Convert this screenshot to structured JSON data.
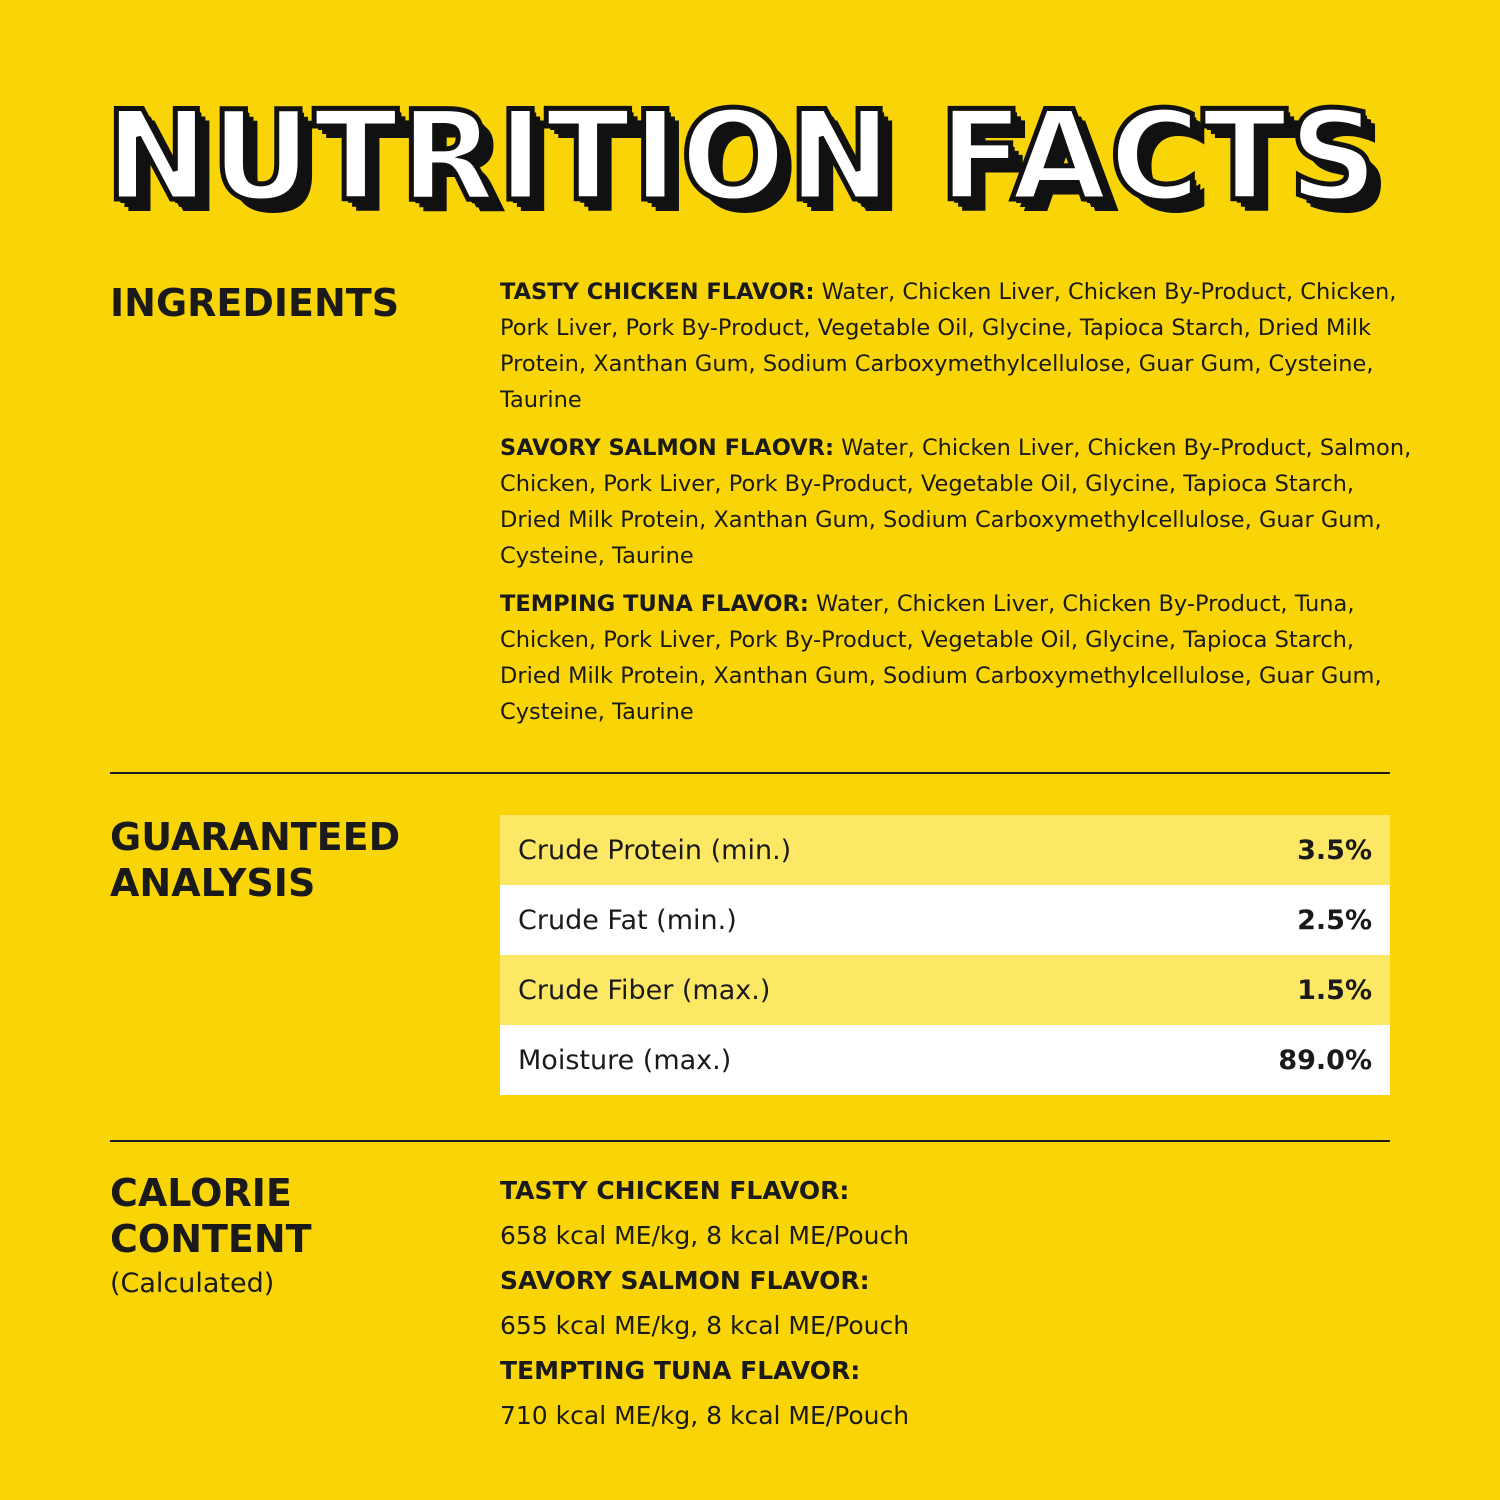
{
  "title": "NUTRITION FACTS",
  "ingredients": {
    "heading": "INGREDIENTS",
    "items": [
      {
        "label": "TASTY CHICKEN FLAVOR:",
        "text": "Water, Chicken Liver, Chicken By-Product, Chicken, Pork Liver, Pork By-Product, Vegetable Oil, Glycine, Tapioca Starch, Dried Milk Protein, Xanthan Gum, Sodium Carboxymethylcellulose, Guar Gum, Cysteine, Taurine"
      },
      {
        "label": "SAVORY SALMON FLAOVR:",
        "text": "Water, Chicken Liver, Chicken By-Product, Salmon, Chicken, Pork Liver, Pork By-Product, Vegetable Oil, Glycine, Tapioca Starch, Dried Milk Protein, Xanthan Gum, Sodium Carboxymethylcellulose, Guar Gum, Cysteine, Taurine"
      },
      {
        "label": "TEMPING TUNA FLAVOR:",
        "text": "Water, Chicken Liver, Chicken By-Product, Tuna, Chicken, Pork Liver, Pork By-Product, Vegetable Oil, Glycine, Tapioca Starch, Dried Milk Protein, Xanthan Gum, Sodium Carboxymethylcellulose, Guar Gum, Cysteine, Taurine"
      }
    ]
  },
  "analysis": {
    "heading": "GUARANTEED ANALYSIS",
    "rows": [
      [
        "Crude Protein (min.)",
        "3.5%"
      ],
      [
        "Crude Fat (min.)",
        "2.5%"
      ],
      [
        "Crude Fiber (max.)",
        "1.5%"
      ],
      [
        "Moisture (max.)",
        "89.0%"
      ]
    ]
  },
  "calorie": {
    "heading": "CALORIE CONTENT",
    "note": "(Calculated)",
    "items": [
      {
        "label": "TASTY CHICKEN FLAVOR:",
        "text": "658 kcal ME/kg, 8 kcal ME/Pouch"
      },
      {
        "label": "SAVORY SALMON FLAVOR:",
        "text": "655 kcal ME/kg, 8 kcal ME/Pouch"
      },
      {
        "label": "TEMPTING TUNA FLAVOR:",
        "text": "710 kcal ME/kg, 8 kcal ME/Pouch"
      }
    ]
  }
}
